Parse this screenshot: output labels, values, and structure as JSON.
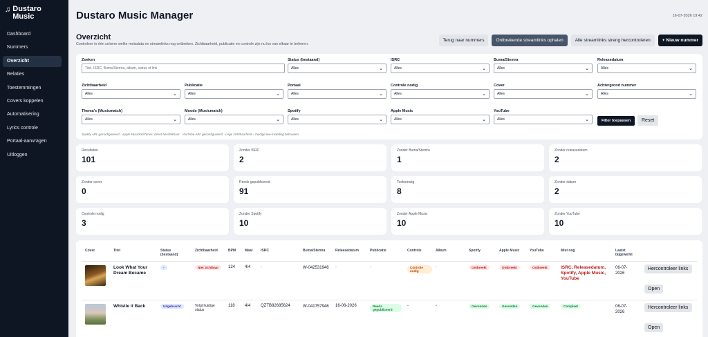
{
  "brand": {
    "name": "Dustaro Music",
    "icon": "music-note-icon"
  },
  "sidebar": {
    "items": [
      {
        "label": "Dashboard",
        "active": false
      },
      {
        "label": "Nummers",
        "active": false
      },
      {
        "label": "Overzicht",
        "active": true
      },
      {
        "label": "Relaties",
        "active": false
      },
      {
        "label": "Toestemmingen",
        "active": false
      },
      {
        "label": "Covers koppelen",
        "active": false
      },
      {
        "label": "Automatisering",
        "active": false
      },
      {
        "label": "Lyrics controle",
        "active": false
      },
      {
        "label": "Portaal-aanvragen",
        "active": false
      },
      {
        "label": "Uitloggen",
        "active": false
      }
    ]
  },
  "header": {
    "title": "Dustaro Music Manager",
    "datetime": "16-07-2026 19:42"
  },
  "section": {
    "title": "Overzicht",
    "subtitle": "Controleer in één scherm welke metadata en streamlinks nog ontbreken. Zichtbaarheid, publicatie en controle zijn nu los van elkaar te beheren."
  },
  "actions": {
    "back": "Terug naar nummers",
    "fetch_missing": "Ontbrekende streamlinks ophalen",
    "recheck_all": "Alle streamlinks streng hercontroleren",
    "new_track": "+ Nieuw nummer"
  },
  "filters": {
    "search": {
      "label": "Zoeken",
      "placeholder": "Titel, ISRC, Buma/Stemra, album, status of link"
    },
    "status": {
      "label": "Status (bestaand)",
      "value": "Alles"
    },
    "isrc": {
      "label": "ISRC",
      "value": "Alles"
    },
    "buma": {
      "label": "Buma/Stemra",
      "value": "Alles"
    },
    "release": {
      "label": "Releasedatum",
      "value": "Alles"
    },
    "visibility": {
      "label": "Zichtbaarheid",
      "value": "Alles"
    },
    "publication": {
      "label": "Publicatie",
      "value": "Alles"
    },
    "portal": {
      "label": "Portaal",
      "value": "Alles"
    },
    "check": {
      "label": "Controle nodig",
      "value": "Alles"
    },
    "cover": {
      "label": "Cover",
      "value": "Alles"
    },
    "background": {
      "label": "Achtergrond nummer",
      "value": "Alles"
    },
    "themes": {
      "label": "Thema's (Musicmatch)",
      "value": "Alles"
    },
    "moods": {
      "label": "Moods (Musicmatch)",
      "value": "Alles"
    },
    "spotify": {
      "label": "Spotify",
      "value": "Alles"
    },
    "apple": {
      "label": "Apple Music",
      "value": "Alles"
    },
    "youtube": {
      "label": "YouTube",
      "value": "Alles"
    },
    "apply": "Filter toepassen",
    "reset": "Reset",
    "footnote": "Spotify API: geconfigureerd · Apple MusicKit/iTunes: direct beschikbaar · YouTube API: geconfigureerd · Lege zichtbaarheid = huidige live-instelling behouden"
  },
  "stats": [
    {
      "label": "Resultaten",
      "value": "101"
    },
    {
      "label": "Zonder ISRC",
      "value": "2"
    },
    {
      "label": "Zonder Buma/Stemra",
      "value": "1"
    },
    {
      "label": "Zonder releasedatum",
      "value": "2"
    },
    {
      "label": "Zonder cover",
      "value": "0"
    },
    {
      "label": "Reeds gepubliceerd",
      "value": "91"
    },
    {
      "label": "Toekomstig",
      "value": "8"
    },
    {
      "label": "Zonder datum",
      "value": "2"
    },
    {
      "label": "Controle nodig",
      "value": "3"
    },
    {
      "label": "Zonder Spotify",
      "value": "10"
    },
    {
      "label": "Zonder Apple Music",
      "value": "10"
    },
    {
      "label": "Zonder YouTube",
      "value": "10"
    }
  ],
  "table": {
    "headers": [
      "Cover",
      "Titel",
      "Status (bestaand)",
      "Zichtbaarheid",
      "BPM",
      "Maat",
      "ISRC",
      "Buma/Stemra",
      "Releasedatum",
      "Publicatie",
      "Controle",
      "Album",
      "Spotify",
      "Apple Music",
      "YouTube",
      "Mist nog",
      "Laatst bijgewerkt"
    ],
    "rows": [
      {
        "title": "Look What Your Dream Became",
        "status": "-",
        "visibility": "Niet zichtbaar",
        "bpm": "124",
        "maat": "4/4",
        "isrc": "-",
        "buma": "W-042531946",
        "release": "-",
        "publication": "-",
        "check": "Controle nodig",
        "album": "-",
        "spotify": "Ontbreekt",
        "apple": "Ontbreekt",
        "youtube": "Ontbreekt",
        "missing": "ISRC, Releasedatum, Spotify, Apple Music, YouTube",
        "updated": "06-07-2026",
        "recheck": "Hercontroleer links",
        "open": "Open"
      },
      {
        "title": "Whistle it Back",
        "status": "Uitgebracht",
        "visibility": "Volgt huidige status",
        "bpm": "118",
        "maat": "4/4",
        "isrc": "QZTB82685624",
        "buma": "W-041757946",
        "release": "16-06-2026",
        "publication": "Reeds gepubliceerd",
        "check": "-",
        "album": "-",
        "spotify": "Gevonden",
        "apple": "Gevonden",
        "youtube": "Gevonden",
        "missing": "Compleet",
        "updated": "06-07-2026",
        "recheck": "Hercontroleer links",
        "open": "Open"
      }
    ]
  },
  "colors": {
    "sidebar": "#0f1623",
    "accent_dark": "#0f1623",
    "accent_slate": "#475569",
    "danger": "#b91c1c",
    "success": "#15803d"
  }
}
